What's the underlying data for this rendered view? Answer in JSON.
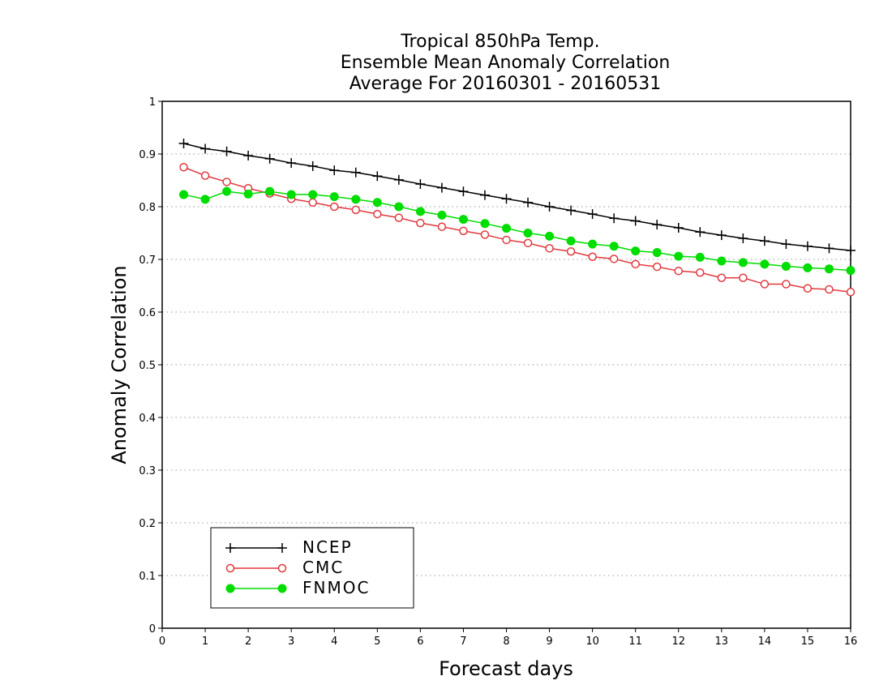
{
  "chart_data": {
    "type": "line",
    "title": [
      "Tropical 850hPa Temp.",
      "Ensemble Mean Anomaly Correlation",
      "Average For 20160301 - 20160531"
    ],
    "xlabel": "Forecast days",
    "ylabel": "Anomaly Correlation",
    "xlim": [
      0,
      16
    ],
    "ylim": [
      0,
      1
    ],
    "xticks": [
      "0",
      "1",
      "2",
      "3",
      "4",
      "5",
      "6",
      "7",
      "8",
      "9",
      "10",
      "11",
      "12",
      "13",
      "14",
      "15",
      "16"
    ],
    "yticks": [
      "0",
      "0.1",
      "0.2",
      "0.3",
      "0.4",
      "0.5",
      "0.6",
      "0.7",
      "0.8",
      "0.9",
      "1"
    ],
    "grid": "horizontal dotted",
    "legend_position": "bottom-left",
    "x": [
      0.5,
      1,
      1.5,
      2,
      2.5,
      3,
      3.5,
      4,
      4.5,
      5,
      5.5,
      6,
      6.5,
      7,
      7.5,
      8,
      8.5,
      9,
      9.5,
      10,
      10.5,
      11,
      11.5,
      12,
      12.5,
      13,
      13.5,
      14,
      14.5,
      15,
      15.5,
      16
    ],
    "series": [
      {
        "name": "NCEP",
        "color": "#000000",
        "marker": "plus",
        "values": [
          0.92,
          0.91,
          0.905,
          0.897,
          0.891,
          0.883,
          0.877,
          0.869,
          0.865,
          0.858,
          0.851,
          0.843,
          0.836,
          0.829,
          0.822,
          0.815,
          0.808,
          0.8,
          0.793,
          0.786,
          0.778,
          0.773,
          0.766,
          0.76,
          0.752,
          0.746,
          0.74,
          0.735,
          0.729,
          0.725,
          0.721,
          0.717
        ]
      },
      {
        "name": "CMC",
        "color": "#e0393e",
        "marker": "open-circle",
        "values": [
          0.875,
          0.859,
          0.847,
          0.835,
          0.825,
          0.815,
          0.808,
          0.8,
          0.794,
          0.786,
          0.779,
          0.769,
          0.762,
          0.754,
          0.747,
          0.737,
          0.731,
          0.721,
          0.715,
          0.705,
          0.701,
          0.691,
          0.686,
          0.678,
          0.675,
          0.665,
          0.665,
          0.653,
          0.653,
          0.645,
          0.643,
          0.638
        ]
      },
      {
        "name": "FNMOC",
        "color": "#00dd00",
        "marker": "filled-circle",
        "values": [
          0.823,
          0.814,
          0.829,
          0.824,
          0.829,
          0.823,
          0.823,
          0.819,
          0.814,
          0.808,
          0.8,
          0.791,
          0.784,
          0.776,
          0.768,
          0.759,
          0.75,
          0.744,
          0.735,
          0.729,
          0.725,
          0.716,
          0.713,
          0.706,
          0.704,
          0.697,
          0.694,
          0.691,
          0.687,
          0.684,
          0.682,
          0.679
        ]
      }
    ]
  }
}
